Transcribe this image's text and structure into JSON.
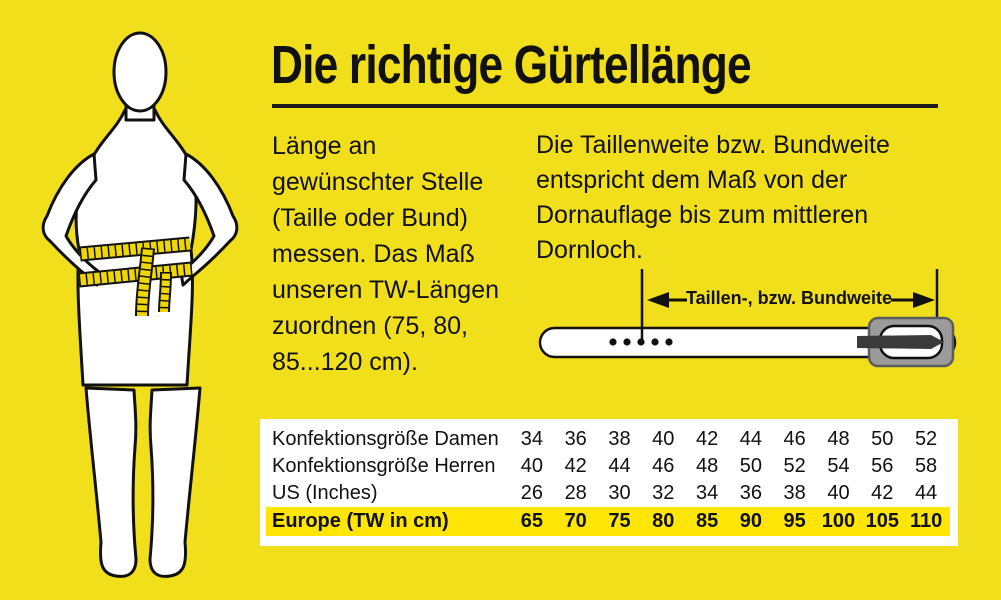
{
  "colors": {
    "background": "#F1DF1B",
    "highlight": "#FFE606",
    "panel": "#FFFFFF",
    "text": "#111111",
    "tape": "#EFD703",
    "buckle": "#9B9B9B",
    "prong": "#3A3A3A",
    "outline": "#111111"
  },
  "header": {
    "title": "Die richtige Gürtellänge"
  },
  "intro_left": {
    "text": "Länge an\ngewünschter Stelle\n(Taille oder Bund)\nmessen. Das Maß\nunseren TW-Längen\nzuordnen (75, 80,\n85...120 cm)."
  },
  "intro_right": {
    "text": "Die Taillenweite bzw. Bundweite\nentspricht dem Maß von der\nDornauflage bis zum mittleren\nDornloch."
  },
  "belt_diagram": {
    "label": "Taillen-, bzw. Bundweite"
  },
  "size_table": {
    "rows": [
      {
        "label": "Konfektionsgröße Damen",
        "values": [
          "34",
          "36",
          "38",
          "40",
          "42",
          "44",
          "46",
          "48",
          "50",
          "52"
        ],
        "highlight": false
      },
      {
        "label": "Konfektionsgröße Herren",
        "values": [
          "40",
          "42",
          "44",
          "46",
          "48",
          "50",
          "52",
          "54",
          "56",
          "58"
        ],
        "highlight": false
      },
      {
        "label": "US (Inches)",
        "values": [
          "26",
          "28",
          "30",
          "32",
          "34",
          "36",
          "38",
          "40",
          "42",
          "44"
        ],
        "highlight": false
      },
      {
        "label": "Europe (TW in cm)",
        "values": [
          "65",
          "70",
          "75",
          "80",
          "85",
          "90",
          "95",
          "100",
          "105",
          "110"
        ],
        "highlight": true
      }
    ]
  }
}
